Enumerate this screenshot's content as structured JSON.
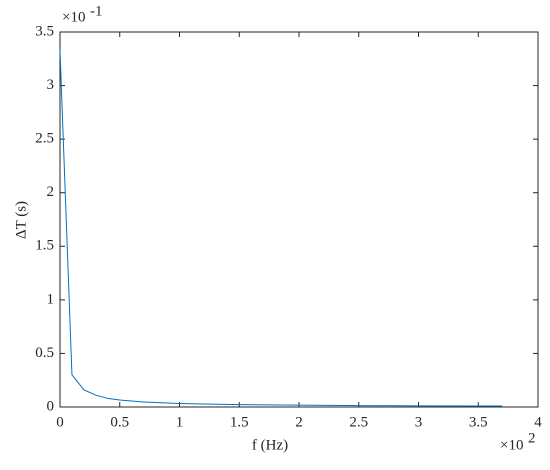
{
  "chart_data": {
    "type": "line",
    "x_label": "f (Hz)",
    "y_label": "ΔT (s)",
    "x_exponent": {
      "base": "×10",
      "power": "2"
    },
    "y_exponent": {
      "base": "×10",
      "power": "-1"
    },
    "x": [
      0,
      0.1,
      0.2,
      0.3,
      0.4,
      0.5,
      0.7,
      1,
      1.5,
      2,
      2.5,
      3,
      3.5,
      3.7
    ],
    "series": [
      {
        "color": "#0072bd",
        "values": [
          3.33,
          0.3,
          0.16,
          0.11,
          0.08,
          0.065,
          0.047,
          0.033,
          0.022,
          0.017,
          0.013,
          0.011,
          0.0095,
          0.009
        ]
      }
    ],
    "xlim": [
      0,
      4
    ],
    "ylim": [
      0,
      3.5
    ],
    "xticks": [
      0,
      0.5,
      1,
      1.5,
      2,
      2.5,
      3,
      3.5,
      4
    ],
    "yticks": [
      0,
      0.5,
      1,
      1.5,
      2,
      2.5,
      3,
      3.5
    ],
    "grid": false
  }
}
